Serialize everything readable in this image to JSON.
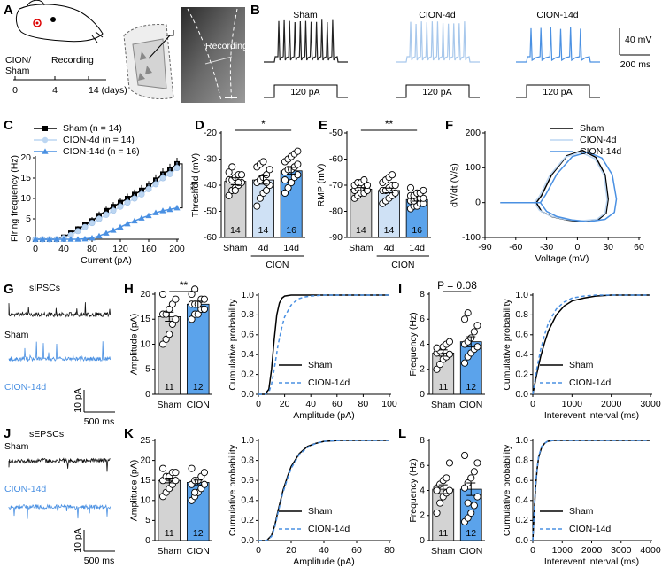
{
  "panel_a": {
    "panel": "A",
    "groups": [
      "CION/",
      "Sham"
    ],
    "timeline_label": "Recording",
    "timeline_ticks": [
      "0",
      "4",
      "14 (days)"
    ],
    "image_label": "Recording"
  },
  "panel_b": {
    "panel": "B",
    "traces": [
      "Sham",
      "CION-4d",
      "CION-14d"
    ],
    "stimulus": "120 pA",
    "scale_y": "40 mV",
    "scale_x": "200 ms"
  },
  "panel_g": {
    "panel": "G",
    "title": "sIPSCs",
    "traces": [
      "Sham",
      "CION-14d"
    ],
    "scale_y": "10 pA",
    "scale_x": "500 ms"
  },
  "panel_j": {
    "panel": "J",
    "title": "sEPSCs",
    "traces": [
      "Sham",
      "CION-14d"
    ],
    "scale_y": "10 pA",
    "scale_x": "500 ms"
  },
  "chart_data": [
    {
      "type": "line",
      "panel": "C",
      "xlabel": "Current (pA)",
      "ylabel": "Firing frequency (Hz)",
      "x": [
        0,
        10,
        20,
        30,
        40,
        50,
        60,
        70,
        80,
        90,
        100,
        110,
        120,
        130,
        140,
        150,
        160,
        170,
        180,
        190,
        200
      ],
      "xlim": [
        0,
        200
      ],
      "xticks": [
        0,
        40,
        80,
        120,
        160,
        200
      ],
      "ylim": [
        0,
        20
      ],
      "yticks": [
        0,
        5,
        10,
        15,
        20
      ],
      "legend": "top-left",
      "annotation": "**",
      "series": [
        {
          "name": "Sham (n = 14)",
          "color": "#000000",
          "marker": "square",
          "values": [
            0,
            0,
            0,
            0,
            0.5,
            1.5,
            2.5,
            3.5,
            4.5,
            5.8,
            7,
            8,
            9,
            10,
            11,
            12,
            13,
            14.5,
            16,
            17,
            18.5
          ],
          "errors": [
            0,
            0,
            0,
            0,
            0.3,
            0.5,
            0.7,
            0.8,
            0.9,
            1,
            1,
            1.1,
            1.1,
            1.2,
            1.2,
            1.3,
            1.3,
            1.4,
            1.4,
            1.5,
            1.5
          ]
        },
        {
          "name": "CION-4d (n = 14)",
          "color": "#bcd6f2",
          "marker": "circle",
          "values": [
            0,
            0,
            0,
            0,
            0.3,
            1,
            2,
            3,
            4,
            5,
            6,
            7,
            8,
            9,
            10,
            11,
            12.3,
            13.5,
            15,
            16,
            17.5
          ],
          "errors": [
            0,
            0,
            0,
            0,
            0.2,
            0.4,
            0.6,
            0.7,
            0.8,
            0.9,
            0.9,
            1,
            1,
            1.1,
            1.1,
            1.2,
            1.2,
            1.3,
            1.3,
            1.4,
            1.4
          ]
        },
        {
          "name": "CION-14d (n = 16)",
          "color": "#4a90e2",
          "marker": "triangle",
          "values": [
            0,
            0,
            0,
            0,
            0,
            0,
            0,
            0.1,
            0.3,
            0.8,
            1.5,
            2.2,
            3,
            3.8,
            4.5,
            5.2,
            5.8,
            6.5,
            7,
            7.3,
            7.7
          ],
          "errors": [
            0,
            0,
            0,
            0,
            0,
            0,
            0,
            0.1,
            0.2,
            0.3,
            0.3,
            0.4,
            0.4,
            0.5,
            0.5,
            0.5,
            0.6,
            0.6,
            0.6,
            0.7,
            0.7
          ]
        }
      ]
    },
    {
      "type": "bar",
      "panel": "D",
      "ylabel": "Threshold (mV)",
      "categories": [
        "Sham",
        "4d",
        "14d"
      ],
      "group_label": "CION",
      "values": [
        -38.5,
        -38,
        -34.5
      ],
      "errors": [
        1.3,
        1.6,
        1.3
      ],
      "n": [
        14,
        14,
        16
      ],
      "colors": [
        "#d3d3d3",
        "#cfe1f5",
        "#5ba3eb"
      ],
      "ylim": [
        -60,
        -20
      ],
      "yticks": [
        -60,
        -50,
        -40,
        -30,
        -20
      ],
      "significance": "*",
      "points": [
        [
          -44,
          -42,
          -41,
          -40,
          -39,
          -38,
          -38,
          -37,
          -36,
          -36,
          -35,
          -33,
          -42,
          -39
        ],
        [
          -48,
          -45,
          -43,
          -42,
          -40,
          -39,
          -38,
          -37,
          -36,
          -34,
          -33,
          -32,
          -31,
          -39
        ],
        [
          -43,
          -41,
          -39,
          -37,
          -36,
          -35,
          -34,
          -34,
          -33,
          -32,
          -31,
          -30,
          -29,
          -28,
          -27,
          -38
        ]
      ]
    },
    {
      "type": "bar",
      "panel": "E",
      "ylabel": "RMP (mV)",
      "categories": [
        "Sham",
        "4d",
        "14d"
      ],
      "group_label": "CION",
      "values": [
        -71.5,
        -72,
        -75.5
      ],
      "errors": [
        0.6,
        0.9,
        0.6
      ],
      "n": [
        14,
        14,
        16
      ],
      "colors": [
        "#d3d3d3",
        "#cfe1f5",
        "#5ba3eb"
      ],
      "ylim": [
        -90,
        -50
      ],
      "yticks": [
        -90,
        -80,
        -70,
        -60,
        -50
      ],
      "significance": "**",
      "points": [
        [
          -75,
          -74,
          -73,
          -73,
          -72,
          -72,
          -71,
          -71,
          -70,
          -70,
          -70,
          -69,
          -69,
          -68
        ],
        [
          -77,
          -76,
          -75,
          -74,
          -73,
          -72,
          -72,
          -71,
          -70,
          -70,
          -69,
          -68,
          -67,
          -66
        ],
        [
          -79,
          -78,
          -78,
          -77,
          -77,
          -76,
          -76,
          -75,
          -75,
          -75,
          -74,
          -74,
          -73,
          -73,
          -72,
          -71
        ]
      ]
    },
    {
      "type": "line",
      "panel": "F",
      "xlabel": "Voltage (mV)",
      "ylabel": "dV/dt (V/s)",
      "xlim": [
        -90,
        60
      ],
      "xticks": [
        -90,
        -60,
        -30,
        0,
        30,
        60
      ],
      "ylim": [
        -100,
        200
      ],
      "yticks": [
        -100,
        0,
        100,
        200
      ],
      "legend": "top-right",
      "series": [
        {
          "name": "Sham",
          "color": "#000000",
          "x": [
            -75,
            -40,
            -35,
            -25,
            -10,
            5,
            18,
            27,
            30,
            28,
            20,
            5,
            -10,
            -25,
            -35,
            -40
          ],
          "values": [
            0,
            0,
            20,
            80,
            135,
            150,
            130,
            80,
            10,
            -30,
            -50,
            -55,
            -50,
            -40,
            -25,
            0
          ]
        },
        {
          "name": "CION-4d",
          "color": "#bcd6f2",
          "x": [
            -75,
            -42,
            -37,
            -27,
            -12,
            3,
            17,
            26,
            29,
            27,
            19,
            4,
            -12,
            -27,
            -37,
            -42
          ],
          "values": [
            0,
            0,
            18,
            78,
            130,
            145,
            126,
            78,
            8,
            -30,
            -48,
            -52,
            -48,
            -38,
            -22,
            0
          ]
        },
        {
          "name": "CION-14d",
          "color": "#4a90e2",
          "x": [
            -75,
            -36,
            -31,
            -20,
            -5,
            10,
            24,
            34,
            38,
            36,
            27,
            10,
            -5,
            -20,
            -30,
            -36
          ],
          "values": [
            0,
            0,
            22,
            82,
            132,
            145,
            128,
            80,
            10,
            -28,
            -48,
            -55,
            -50,
            -40,
            -25,
            0
          ]
        }
      ]
    },
    {
      "type": "bar",
      "panel": "H",
      "ylabel": "Amplitude (pA)",
      "categories": [
        "Sham",
        "CION"
      ],
      "values": [
        15.5,
        18
      ],
      "errors": [
        0.9,
        0.6
      ],
      "n": [
        11,
        12
      ],
      "colors": [
        "#d3d3d3",
        "#5ba3eb"
      ],
      "ylim": [
        0,
        20
      ],
      "yticks": [
        0,
        5,
        10,
        15,
        20
      ],
      "significance": "**",
      "points": [
        [
          10,
          11,
          12,
          14,
          15,
          16,
          16,
          17,
          18,
          19,
          20
        ],
        [
          15,
          16,
          16,
          17,
          17,
          18,
          18,
          18,
          19,
          19,
          20,
          21
        ]
      ]
    },
    {
      "type": "line",
      "xlabel": "Amplitude (pA)",
      "ylabel": "Cumulative probability",
      "xlim": [
        0,
        100
      ],
      "xticks": [
        0,
        20,
        40,
        60,
        80,
        100
      ],
      "ylim": [
        0,
        1
      ],
      "yticks": [
        {
          "value": 0,
          "label": "0.0"
        },
        0.2,
        0.4,
        0.6,
        0.8,
        {
          "value": 1,
          "label": "1.0"
        }
      ],
      "legend": "bottom-right",
      "series": [
        {
          "name": "Sham",
          "color": "#000000",
          "x": [
            0,
            5,
            8,
            10,
            12,
            14,
            16,
            18,
            20,
            25,
            30,
            40,
            100
          ],
          "values": [
            0,
            0,
            0.05,
            0.25,
            0.55,
            0.8,
            0.92,
            0.97,
            0.99,
            1,
            1,
            1,
            1
          ]
        },
        {
          "name": "CION-14d",
          "color": "#4a90e2",
          "dash": true,
          "x": [
            0,
            5,
            8,
            10,
            12,
            15,
            18,
            20,
            25,
            30,
            35,
            40,
            50,
            100
          ],
          "values": [
            0,
            0,
            0.02,
            0.1,
            0.25,
            0.5,
            0.68,
            0.78,
            0.9,
            0.96,
            0.98,
            0.99,
            1,
            1
          ]
        }
      ]
    },
    {
      "type": "bar",
      "panel": "I",
      "ylabel": "Frequency (Hz)",
      "categories": [
        "Sham",
        "CION"
      ],
      "values": [
        3.3,
        4.2
      ],
      "errors": [
        0.25,
        0.4
      ],
      "n": [
        11,
        12
      ],
      "colors": [
        "#d3d3d3",
        "#5ba3eb"
      ],
      "ylim": [
        0,
        8
      ],
      "yticks": [
        0,
        2,
        4,
        6,
        8
      ],
      "significance": "P = 0.08",
      "points": [
        [
          2,
          2.4,
          2.8,
          3,
          3.2,
          3.3,
          3.5,
          3.8,
          4,
          4.2,
          3.7
        ],
        [
          2.5,
          3,
          3.3,
          3.6,
          3.8,
          4,
          4.2,
          4.5,
          5,
          5.5,
          6,
          6.5
        ]
      ]
    },
    {
      "type": "line",
      "xlabel": "Interevent interval (ms)",
      "ylabel": "Cumulative probability",
      "xlim": [
        0,
        3000
      ],
      "xticks": [
        0,
        1000,
        2000,
        3000
      ],
      "ylim": [
        0,
        1
      ],
      "yticks": [
        {
          "value": 0,
          "label": "0.0"
        },
        0.2,
        0.4,
        0.6,
        0.8,
        {
          "value": 1,
          "label": "1.0"
        }
      ],
      "legend": "bottom-right",
      "series": [
        {
          "name": "Sham",
          "color": "#000000",
          "x": [
            0,
            100,
            200,
            300,
            400,
            600,
            800,
            1000,
            1300,
            1600,
            2000,
            3000
          ],
          "values": [
            0,
            0.2,
            0.38,
            0.52,
            0.64,
            0.8,
            0.89,
            0.94,
            0.97,
            0.99,
            1,
            1
          ]
        },
        {
          "name": "CION-14d",
          "color": "#4a90e2",
          "dash": true,
          "x": [
            0,
            100,
            200,
            300,
            400,
            600,
            800,
            1000,
            1300,
            1600,
            2000,
            3000
          ],
          "values": [
            0,
            0.25,
            0.45,
            0.6,
            0.72,
            0.86,
            0.93,
            0.97,
            0.99,
            1,
            1,
            1
          ]
        }
      ]
    },
    {
      "type": "bar",
      "panel": "K",
      "ylabel": "Amplitude (pA)",
      "categories": [
        "Sham",
        "CION"
      ],
      "values": [
        15,
        14.5
      ],
      "errors": [
        0.6,
        0.6
      ],
      "n": [
        11,
        12
      ],
      "colors": [
        "#d3d3d3",
        "#5ba3eb"
      ],
      "ylim": [
        0,
        25
      ],
      "yticks": [
        0,
        5,
        10,
        15,
        20,
        25
      ],
      "points": [
        [
          11,
          12,
          13,
          14,
          15,
          15,
          16,
          16,
          17,
          17,
          18
        ],
        [
          10,
          11,
          12,
          13,
          14,
          14,
          15,
          15,
          16,
          17,
          18,
          12
        ]
      ]
    },
    {
      "type": "line",
      "xlabel": "Amplitude (pA)",
      "ylabel": "Cumulative probability",
      "xlim": [
        0,
        80
      ],
      "xticks": [
        0,
        20,
        40,
        60,
        80
      ],
      "ylim": [
        0,
        1
      ],
      "yticks": [
        {
          "value": 0,
          "label": "0.0"
        },
        0.2,
        0.4,
        0.6,
        0.8,
        {
          "value": 1,
          "label": "1.0"
        }
      ],
      "legend": "bottom-right",
      "series": [
        {
          "name": "Sham",
          "color": "#000000",
          "x": [
            0,
            5,
            8,
            10,
            12,
            15,
            18,
            20,
            25,
            30,
            35,
            40,
            50,
            60,
            80
          ],
          "values": [
            0,
            0,
            0.05,
            0.15,
            0.3,
            0.5,
            0.65,
            0.74,
            0.87,
            0.94,
            0.97,
            0.99,
            1,
            1,
            1
          ]
        },
        {
          "name": "CION-14d",
          "color": "#4a90e2",
          "dash": true,
          "x": [
            0,
            5,
            8,
            10,
            12,
            15,
            18,
            20,
            25,
            30,
            35,
            40,
            50,
            60,
            80
          ],
          "values": [
            0,
            0,
            0.04,
            0.13,
            0.28,
            0.48,
            0.63,
            0.72,
            0.86,
            0.93,
            0.97,
            0.99,
            1,
            1,
            1
          ]
        }
      ]
    },
    {
      "type": "bar",
      "panel": "L",
      "ylabel": "Frequency (Hz)",
      "categories": [
        "Sham",
        "CION"
      ],
      "values": [
        4.1,
        4.1
      ],
      "errors": [
        0.35,
        0.5
      ],
      "n": [
        11,
        12
      ],
      "colors": [
        "#d3d3d3",
        "#5ba3eb"
      ],
      "ylim": [
        0,
        8
      ],
      "yticks": [
        0,
        2,
        4,
        6,
        8
      ],
      "points": [
        [
          2.2,
          3,
          3.5,
          3.8,
          4,
          4.2,
          4.5,
          4.8,
          5,
          6.2,
          4
        ],
        [
          1.5,
          1.8,
          2.2,
          2.8,
          3.5,
          4.2,
          4.6,
          5,
          5.5,
          6.2,
          6.8,
          3
        ]
      ]
    },
    {
      "type": "line",
      "xlabel": "Interevent interval (ms)",
      "ylabel": "Cumulative probability",
      "xlim": [
        0,
        4000
      ],
      "xticks": [
        0,
        1000,
        2000,
        3000,
        4000
      ],
      "ylim": [
        0,
        1
      ],
      "yticks": [
        {
          "value": 0,
          "label": "0.0"
        },
        0.2,
        0.4,
        0.6,
        0.8,
        {
          "value": 1,
          "label": "1.0"
        }
      ],
      "legend": "bottom-right",
      "series": [
        {
          "name": "Sham",
          "color": "#000000",
          "x": [
            0,
            50,
            100,
            150,
            200,
            300,
            400,
            500,
            700,
            1000,
            4000
          ],
          "values": [
            0,
            0.3,
            0.55,
            0.72,
            0.83,
            0.93,
            0.97,
            0.99,
            1,
            1,
            1
          ]
        },
        {
          "name": "CION-14d",
          "color": "#4a90e2",
          "dash": true,
          "x": [
            0,
            50,
            100,
            150,
            200,
            300,
            400,
            500,
            700,
            1000,
            4000
          ],
          "values": [
            0,
            0.32,
            0.57,
            0.73,
            0.84,
            0.94,
            0.97,
            0.99,
            1,
            1,
            1
          ]
        }
      ]
    }
  ]
}
